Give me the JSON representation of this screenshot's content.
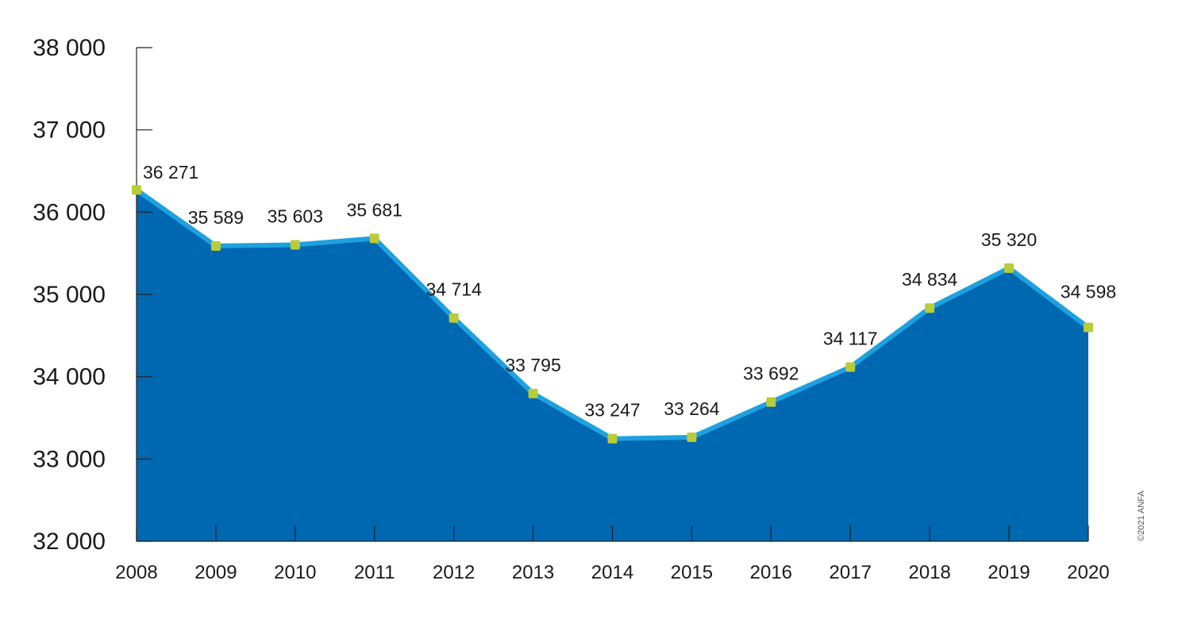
{
  "chart_data": {
    "type": "area",
    "title": "",
    "xlabel": "",
    "ylabel": "",
    "x": [
      "2008",
      "2009",
      "2010",
      "2011",
      "2012",
      "2013",
      "2014",
      "2015",
      "2016",
      "2017",
      "2018",
      "2019",
      "2020"
    ],
    "series": [
      {
        "values": [
          36271,
          35589,
          35603,
          35681,
          34714,
          33795,
          33247,
          33264,
          33692,
          34117,
          34834,
          35320,
          34598
        ],
        "labels": [
          "36 271",
          "35 589",
          "35 603",
          "35 681",
          "34 714",
          "33 795",
          "33 247",
          "33 264",
          "33 692",
          "34 117",
          "34 834",
          "35 320",
          "34 598"
        ]
      }
    ],
    "ylim": [
      32000,
      38000
    ],
    "yticks": [
      32000,
      33000,
      34000,
      35000,
      36000,
      37000,
      38000
    ],
    "ytick_labels": [
      "32 000",
      "33 000",
      "34 000",
      "35 000",
      "36 000",
      "37 000",
      "38 000"
    ],
    "grid": false,
    "highlight_last_label": true,
    "colors": {
      "area_fill": "#0067b1",
      "line": "#1ea1df",
      "marker": "#b9cc3a",
      "label": "#1a1a1a",
      "highlight_label": "#e3261b",
      "axis": "#222222"
    }
  },
  "credit": "©2021 ANFA"
}
